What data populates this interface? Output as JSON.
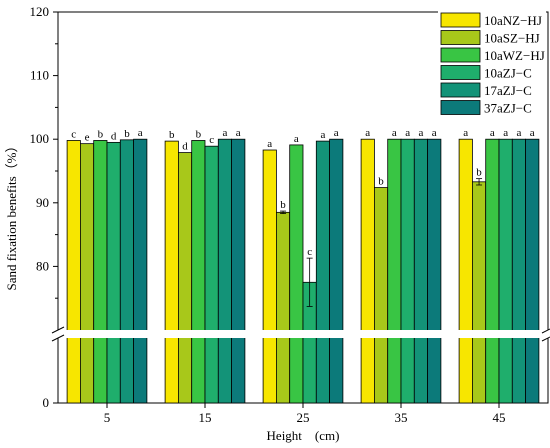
{
  "chart_data": {
    "type": "bar",
    "xlabel": "Height　(cm)",
    "ylabel": "Sand fixation benefits（%）",
    "categories": [
      "5",
      "15",
      "25",
      "35",
      "45"
    ],
    "axis_break": true,
    "ylim_upper": [
      70,
      120
    ],
    "ylim_lower": [
      0,
      10
    ],
    "yticks": [
      "0",
      "80",
      "90",
      "100",
      "110",
      "120"
    ],
    "legend_position": "top-right",
    "series": [
      {
        "name": "10aNZ−HJ",
        "color": "#f7e600",
        "values": [
          99.8,
          99.7,
          98.3,
          100,
          100
        ],
        "errors": [
          0,
          0,
          0,
          0,
          0
        ],
        "letters": [
          "c",
          "b",
          "a",
          "a",
          "a"
        ]
      },
      {
        "name": "10aSZ−HJ",
        "color": "#a8c81a",
        "values": [
          99.3,
          97.9,
          88.5,
          92.4,
          93.3
        ],
        "errors": [
          0,
          0,
          0.2,
          0,
          0.5
        ],
        "letters": [
          "e",
          "d",
          "b",
          "b",
          "b"
        ]
      },
      {
        "name": "10aWZ−HJ",
        "color": "#39c544",
        "values": [
          99.8,
          99.8,
          99.1,
          100,
          100
        ],
        "errors": [
          0,
          0,
          0,
          0,
          0
        ],
        "letters": [
          "b",
          "b",
          "a",
          "a",
          "a"
        ]
      },
      {
        "name": "10aZJ−C",
        "color": "#1fae6c",
        "values": [
          99.5,
          98.9,
          77.5,
          100,
          100
        ],
        "errors": [
          0,
          0,
          3.8,
          0,
          0
        ],
        "letters": [
          "d",
          "c",
          "c",
          "a",
          "a"
        ]
      },
      {
        "name": "17aZJ−C",
        "color": "#139378",
        "values": [
          99.9,
          100,
          99.7,
          100,
          100
        ],
        "errors": [
          0,
          0,
          0,
          0,
          0
        ],
        "letters": [
          "b",
          "a",
          "a",
          "a",
          "a"
        ]
      },
      {
        "name": "37aZJ−C",
        "color": "#0c7a7a",
        "values": [
          100,
          100,
          100,
          100,
          100
        ],
        "errors": [
          0,
          0,
          0,
          0,
          0
        ],
        "letters": [
          "a",
          "a",
          "a",
          "a",
          "a"
        ]
      }
    ]
  }
}
